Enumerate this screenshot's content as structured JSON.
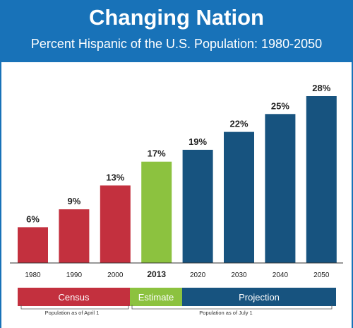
{
  "header": {
    "title": "Changing Nation",
    "subtitle": "Percent Hispanic of the U.S. Population: 1980-2050"
  },
  "chart_data": {
    "type": "bar",
    "title": "Changing Nation",
    "subtitle": "Percent Hispanic of the U.S. Population: 1980-2050",
    "categories": [
      "1980",
      "1990",
      "2000",
      "2013",
      "2020",
      "2030",
      "2040",
      "2050"
    ],
    "values": [
      6,
      9,
      13,
      17,
      19,
      22,
      25,
      28
    ],
    "data_labels": [
      "6%",
      "9%",
      "13%",
      "17%",
      "19%",
      "22%",
      "25%",
      "28%"
    ],
    "bar_groups": [
      "Census",
      "Census",
      "Census",
      "Estimate",
      "Projection",
      "Projection",
      "Projection",
      "Projection"
    ],
    "highlight_category": "2013",
    "ylim": [
      0,
      28
    ],
    "grid": false,
    "xlabel": "",
    "ylabel": ""
  },
  "legend": [
    {
      "label": "Census",
      "color": "#c3303e"
    },
    {
      "label": "Estimate",
      "color": "#8cc23f"
    },
    {
      "label": "Projection",
      "color": "#17537f"
    }
  ],
  "notes": {
    "april": "Population as of April 1",
    "july": "Population as of July 1"
  },
  "colors": {
    "header": "#1872b8",
    "census": "#c3303e",
    "estimate": "#8cc23f",
    "projection": "#17537f"
  }
}
